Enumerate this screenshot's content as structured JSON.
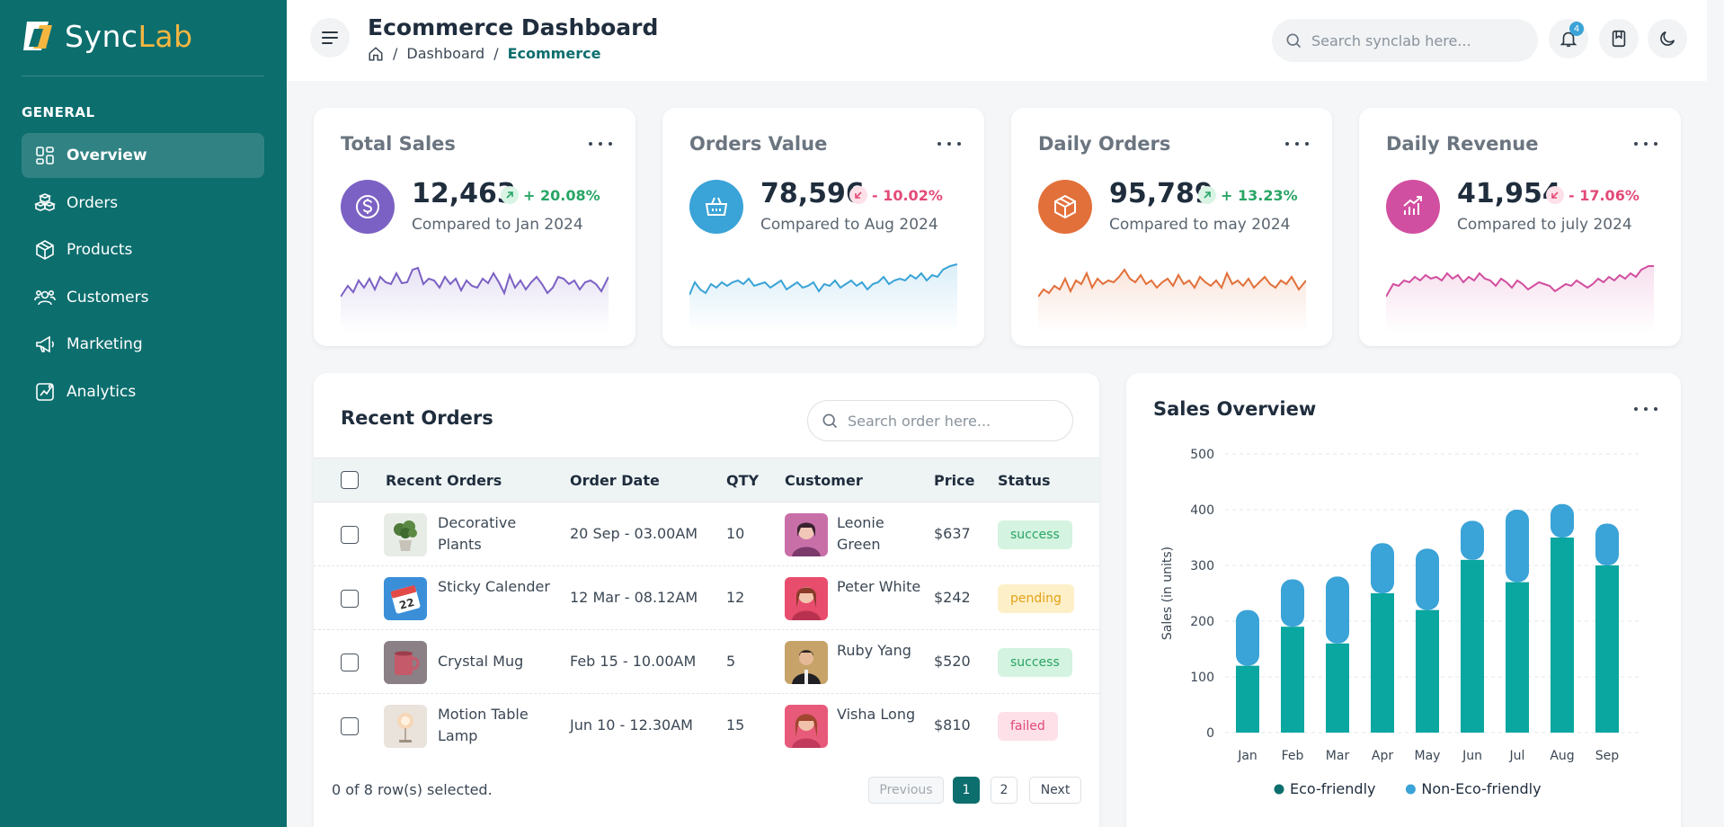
{
  "brand": {
    "name_part1": "Sync",
    "name_part2": "Lab"
  },
  "sidebar": {
    "section": "GENERAL",
    "items": [
      {
        "label": "Overview",
        "icon": "overview-icon",
        "active": true
      },
      {
        "label": "Orders",
        "icon": "orders-icon"
      },
      {
        "label": "Products",
        "icon": "products-icon"
      },
      {
        "label": "Customers",
        "icon": "customers-icon"
      },
      {
        "label": "Marketing",
        "icon": "marketing-icon"
      },
      {
        "label": "Analytics",
        "icon": "analytics-icon"
      }
    ]
  },
  "header": {
    "title": "Ecommerce Dashboard",
    "breadcrumb": [
      "Dashboard",
      "Ecommerce"
    ],
    "search_placeholder": "Search synclab here...",
    "notification_count": "4"
  },
  "stats": [
    {
      "title": "Total Sales",
      "value": "12,463",
      "change": "+ 20.08%",
      "direction": "up",
      "compare": "Compared to Jan 2024",
      "color": "#7b61c4",
      "icon": "dollar-icon"
    },
    {
      "title": "Orders Value",
      "value": "78,596",
      "change": "- 10.02%",
      "direction": "down",
      "compare": "Compared to Aug 2024",
      "color": "#3aa3d7",
      "icon": "basket-icon"
    },
    {
      "title": "Daily Orders",
      "value": "95,789",
      "change": "+ 13.23%",
      "direction": "up",
      "compare": "Compared to may 2024",
      "color": "#e2703a",
      "icon": "box-icon"
    },
    {
      "title": "Daily Revenue",
      "value": "41,954",
      "change": "- 17.06%",
      "direction": "down",
      "compare": "Compared to july 2024",
      "color": "#d14fa0",
      "icon": "chart-up-icon"
    }
  ],
  "recent_orders": {
    "title": "Recent Orders",
    "search_placeholder": "Search order here...",
    "columns": [
      "Recent Orders",
      "Order Date",
      "QTY",
      "Customer",
      "Price",
      "Status"
    ],
    "rows": [
      {
        "product": "Decorative Plants",
        "date": "20 Sep - 03.00AM",
        "qty": "10",
        "customer": "Leonie Green",
        "price": "$637",
        "status": "success"
      },
      {
        "product": "Sticky Calender",
        "date": "12 Mar - 08.12AM",
        "qty": "12",
        "customer": "Peter White",
        "price": "$242",
        "status": "pending"
      },
      {
        "product": "Crystal Mug",
        "date": "Feb 15 - 10.00AM",
        "qty": "5",
        "customer": "Ruby Yang",
        "price": "$520",
        "status": "success"
      },
      {
        "product": "Motion Table Lamp",
        "date": "Jun 10 - 12.30AM",
        "qty": "15",
        "customer": "Visha Long",
        "price": "$810",
        "status": "failed"
      }
    ],
    "selection_text": "0 of 8 row(s) selected.",
    "pagination": {
      "previous": "Previous",
      "pages": [
        "1",
        "2"
      ],
      "next": "Next",
      "current": "1"
    }
  },
  "sales_overview": {
    "title": "Sales Overview",
    "chart_data": {
      "type": "bar",
      "stacked": true,
      "categories": [
        "Jan",
        "Feb",
        "Mar",
        "Apr",
        "May",
        "Jun",
        "Jul",
        "Aug",
        "Sep"
      ],
      "series": [
        {
          "name": "Eco-friendly",
          "values": [
            120,
            190,
            160,
            250,
            220,
            310,
            270,
            350,
            300
          ],
          "color": "#0aa6a0"
        },
        {
          "name": "Non-Eco-friendly",
          "values": [
            100,
            85,
            120,
            90,
            110,
            70,
            130,
            60,
            75
          ],
          "color": "#3aa3d7"
        }
      ],
      "ylabel": "Sales (in units)",
      "ylim": [
        0,
        500
      ],
      "yticks": [
        0,
        100,
        200,
        300,
        400,
        500
      ],
      "legend": "bottom",
      "legend_dot_colors": [
        "#0d6e6e",
        "#3aa3d7"
      ]
    }
  }
}
